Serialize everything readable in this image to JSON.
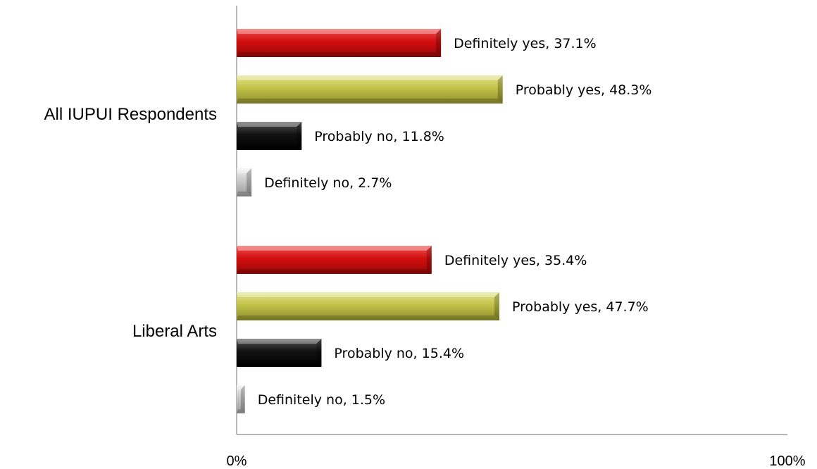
{
  "chart_data": {
    "type": "bar",
    "orientation": "horizontal",
    "categories": [
      "All IUPUI Respondents",
      "Liberal Arts"
    ],
    "series": [
      {
        "name": "Definitely yes",
        "values": [
          37.1,
          35.4
        ],
        "labels": [
          "Definitely yes, 37.1%",
          "Definitely yes, 35.4%"
        ]
      },
      {
        "name": "Probably yes",
        "values": [
          48.3,
          47.7
        ],
        "labels": [
          "Probably yes, 48.3%",
          "Probably yes, 47.7%"
        ]
      },
      {
        "name": "Probably no",
        "values": [
          11.8,
          15.4
        ],
        "labels": [
          "Probably no, 11.8%",
          "Probably no, 15.4%"
        ]
      },
      {
        "name": "Definitely no",
        "values": [
          2.7,
          1.5
        ],
        "labels": [
          "Definitely no, 2.7%",
          "Definitely no, 1.5%"
        ]
      }
    ],
    "colors": [
      "#d10d0d",
      "#c2c24a",
      "#111111",
      "#c8c8c8"
    ],
    "xlim": [
      0,
      100
    ],
    "x_ticks": [
      "0%",
      "100%"
    ],
    "title": "",
    "xlabel": "",
    "ylabel": "",
    "legend": "none",
    "grid": false
  }
}
